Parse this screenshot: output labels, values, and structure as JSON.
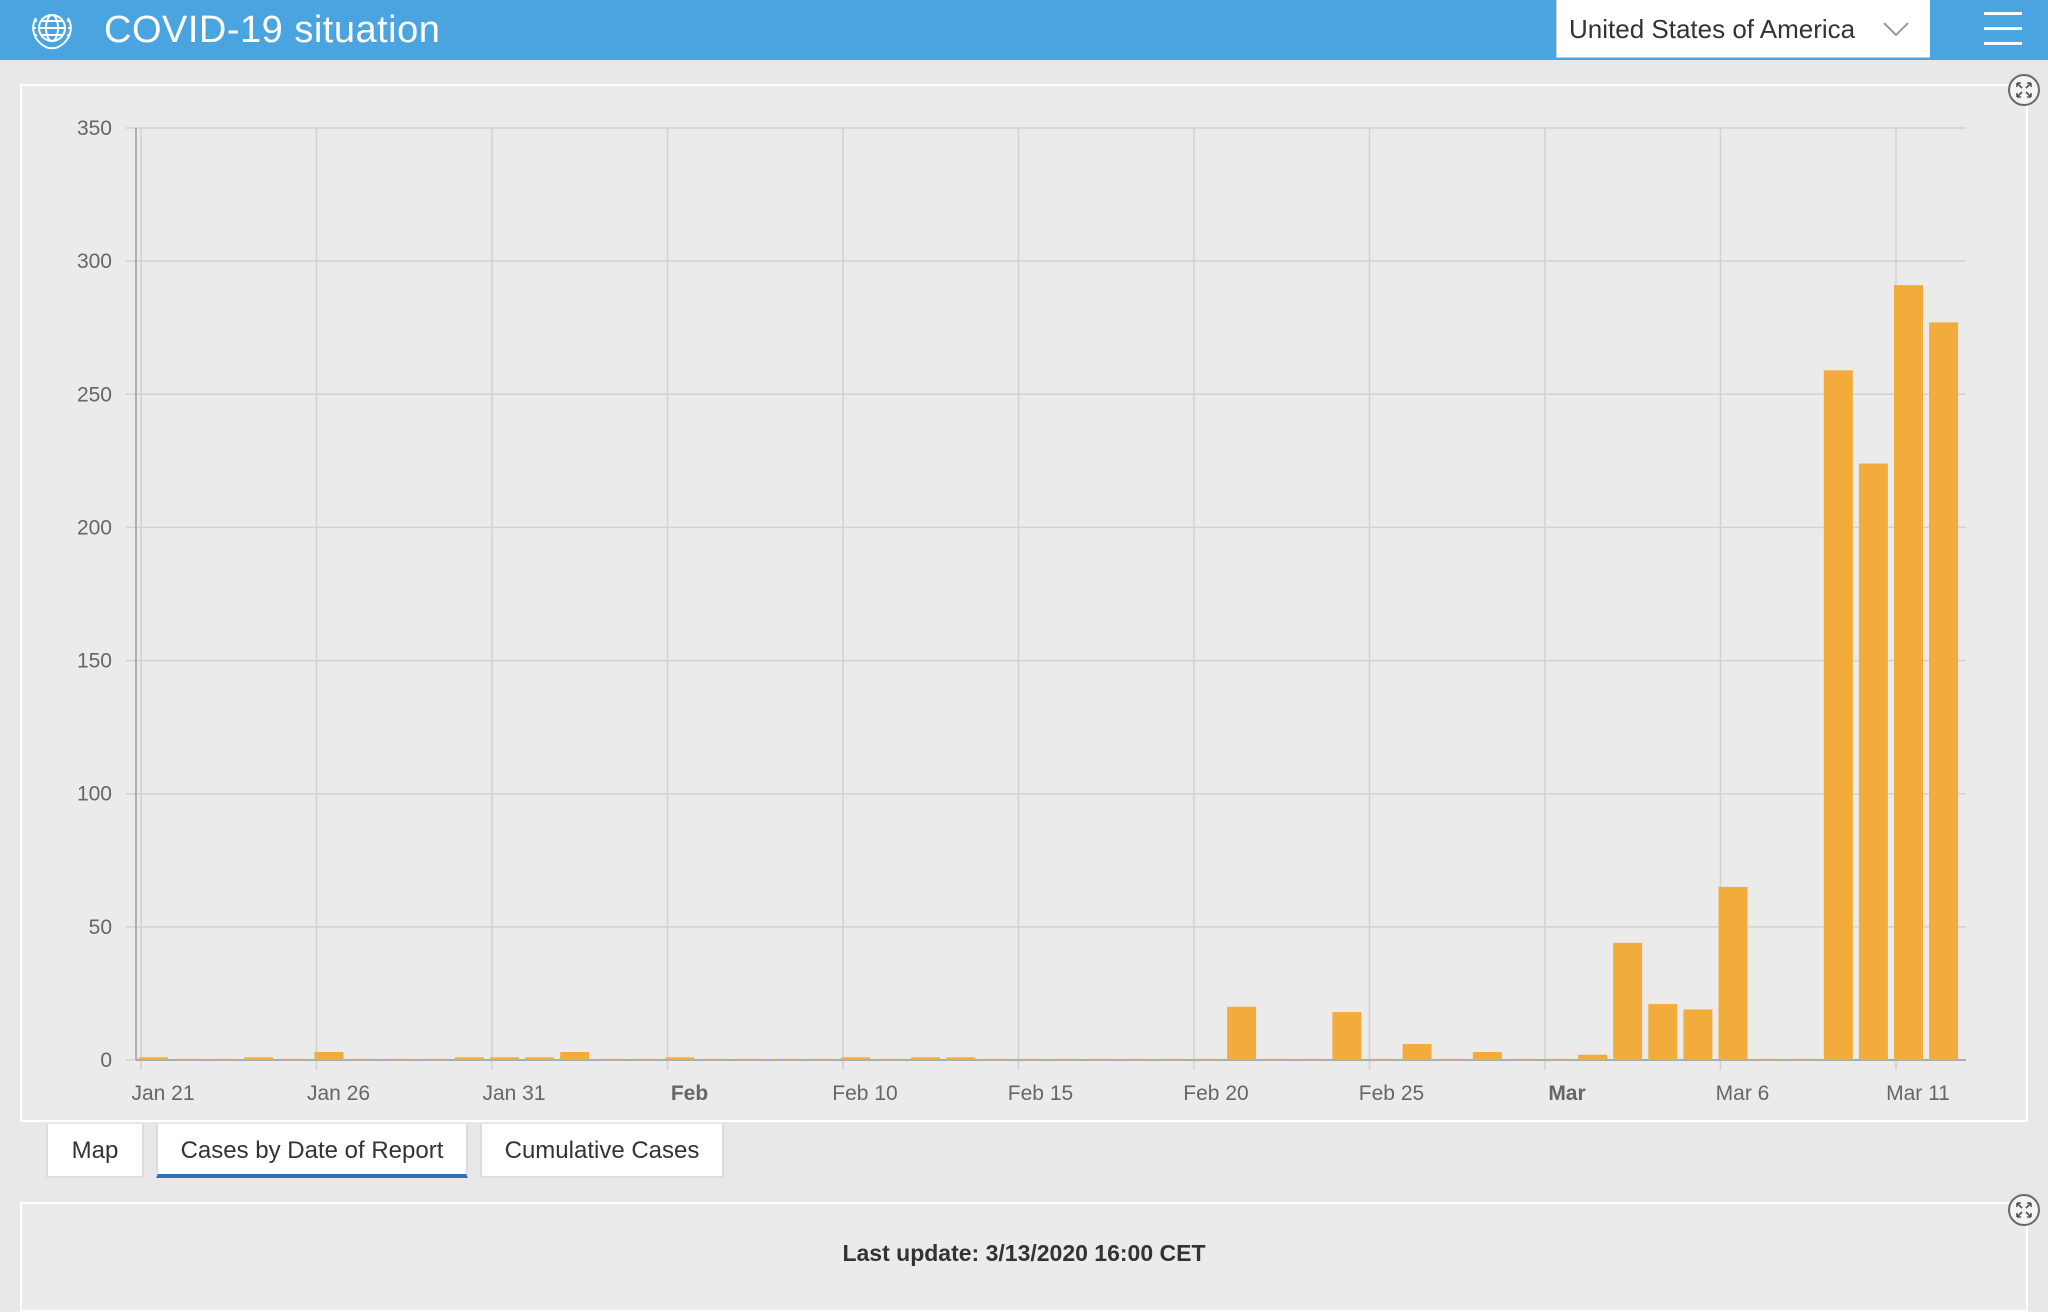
{
  "header": {
    "title": "COVID-19 situation",
    "logo_icon": "who-emblem-icon",
    "country_select": {
      "value": "United States of America"
    },
    "menu_icon": "hamburger-menu-icon",
    "background": "#4aa4e0"
  },
  "tabs": [
    {
      "label": "Map",
      "active": false
    },
    {
      "label": "Cases by Date of Report",
      "active": true
    },
    {
      "label": "Cumulative Cases",
      "active": false
    }
  ],
  "footer": {
    "last_update": "Last update: 3/13/2020 16:00 CET"
  },
  "chart_data": {
    "type": "bar",
    "ylim": [
      0,
      350
    ],
    "yticks": [
      0,
      50,
      100,
      150,
      200,
      250,
      300,
      350
    ],
    "grid": true,
    "bar_color": "#f2ac3c",
    "x_tick_labels": [
      {
        "label": "Jan 21",
        "date": "2020-01-21",
        "bold": false
      },
      {
        "label": "Jan 26",
        "date": "2020-01-26",
        "bold": false
      },
      {
        "label": "Jan 31",
        "date": "2020-01-31",
        "bold": false
      },
      {
        "label": "Feb",
        "date": "2020-02-05",
        "bold": true
      },
      {
        "label": "Feb 10",
        "date": "2020-02-10",
        "bold": false
      },
      {
        "label": "Feb 15",
        "date": "2020-02-15",
        "bold": false
      },
      {
        "label": "Feb 20",
        "date": "2020-02-20",
        "bold": false
      },
      {
        "label": "Feb 25",
        "date": "2020-02-25",
        "bold": false
      },
      {
        "label": "Mar",
        "date": "2020-03-01",
        "bold": true
      },
      {
        "label": "Mar 6",
        "date": "2020-03-06",
        "bold": false
      },
      {
        "label": "Mar 11",
        "date": "2020-03-11",
        "bold": false
      }
    ],
    "x": [
      "2020-01-21",
      "2020-01-22",
      "2020-01-23",
      "2020-01-24",
      "2020-01-25",
      "2020-01-26",
      "2020-01-27",
      "2020-01-28",
      "2020-01-29",
      "2020-01-30",
      "2020-01-31",
      "2020-02-01",
      "2020-02-02",
      "2020-02-03",
      "2020-02-04",
      "2020-02-05",
      "2020-02-06",
      "2020-02-07",
      "2020-02-08",
      "2020-02-09",
      "2020-02-10",
      "2020-02-11",
      "2020-02-12",
      "2020-02-13",
      "2020-02-14",
      "2020-02-15",
      "2020-02-16",
      "2020-02-17",
      "2020-02-18",
      "2020-02-19",
      "2020-02-20",
      "2020-02-21",
      "2020-02-22",
      "2020-02-23",
      "2020-02-24",
      "2020-02-25",
      "2020-02-26",
      "2020-02-27",
      "2020-02-28",
      "2020-02-29",
      "2020-03-01",
      "2020-03-02",
      "2020-03-03",
      "2020-03-04",
      "2020-03-05",
      "2020-03-06",
      "2020-03-07",
      "2020-03-08",
      "2020-03-09",
      "2020-03-10",
      "2020-03-11",
      "2020-03-12"
    ],
    "values": [
      1,
      0,
      0,
      1,
      0,
      3,
      0,
      0,
      0,
      1,
      1,
      1,
      3,
      0,
      0,
      1,
      0,
      0,
      0,
      0,
      1,
      0,
      1,
      1,
      0,
      0,
      0,
      0,
      0,
      0,
      0,
      20,
      0,
      0,
      18,
      0,
      6,
      0,
      3,
      0,
      0,
      2,
      44,
      21,
      19,
      65,
      0,
      0,
      259,
      224,
      291,
      277
    ]
  }
}
